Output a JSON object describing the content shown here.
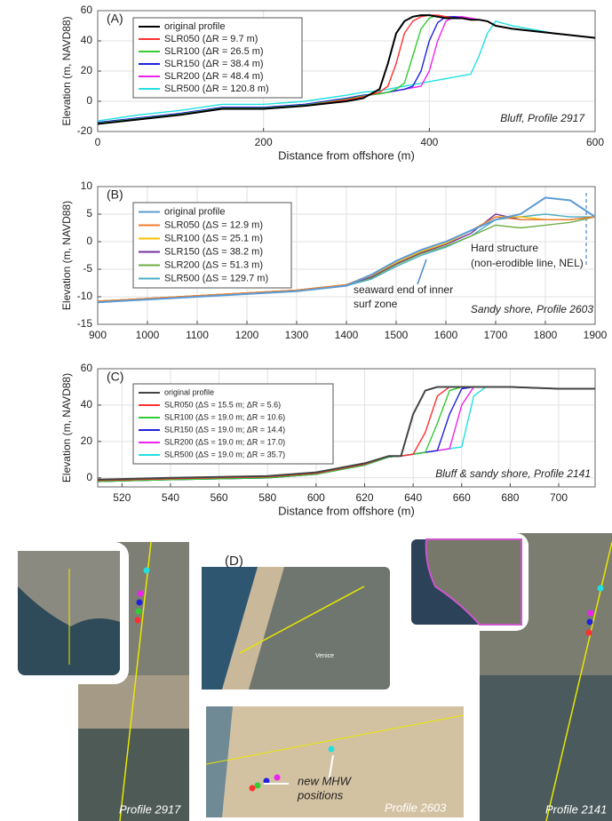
{
  "chart_data": [
    {
      "type": "line",
      "panel_label": "(A)",
      "corner_note": "Bluff, Profile 2917",
      "xlabel": "Distance from offshore (m)",
      "ylabel": "Elevation (m, NAVD88)",
      "xlim": [
        0,
        600
      ],
      "ylim": [
        -20,
        60
      ],
      "xticks": [
        0,
        200,
        400,
        600
      ],
      "yticks": [
        -20,
        0,
        20,
        40,
        60
      ],
      "grid": true,
      "x": [
        0,
        50,
        100,
        150,
        200,
        250,
        300,
        320,
        340,
        350,
        360,
        370,
        380,
        390,
        400,
        410,
        420,
        430,
        440,
        450,
        460,
        470,
        480,
        500,
        550,
        600
      ],
      "series": [
        {
          "name": "original profile",
          "color": "#000000",
          "values": [
            -15,
            -12,
            -9,
            -5,
            -5,
            -3,
            0,
            2,
            8,
            25,
            45,
            53,
            56,
            57,
            57,
            56,
            55,
            55,
            55,
            54,
            54,
            53,
            50,
            48,
            45,
            42
          ]
        },
        {
          "name": "SLR050 (ΔR = 9.7 m)",
          "color": "#ff3030",
          "values": [
            -15,
            -12,
            -9,
            -5,
            -5,
            -3,
            1,
            3,
            6,
            10,
            25,
            45,
            53,
            56,
            57,
            57,
            56,
            55,
            55,
            54,
            54,
            53,
            50,
            48,
            45,
            42
          ]
        },
        {
          "name": "SLR100 (ΔR = 26.5 m)",
          "color": "#33cc33",
          "values": [
            -14.5,
            -11.5,
            -8.5,
            -4.5,
            -4.5,
            -2.5,
            1.5,
            3.5,
            5,
            6,
            8,
            12,
            30,
            48,
            55,
            57,
            56,
            55,
            55,
            54,
            54,
            53,
            50,
            48,
            45,
            42
          ]
        },
        {
          "name": "SLR150 (ΔR = 38.4 m)",
          "color": "#2020dd",
          "values": [
            -14,
            -11,
            -8,
            -4,
            -4,
            -2,
            2,
            4,
            5,
            6,
            7,
            8,
            10,
            20,
            40,
            52,
            56,
            56,
            55,
            54,
            54,
            53,
            50,
            48,
            45,
            42
          ]
        },
        {
          "name": "SLR200 (ΔR = 48.4 m)",
          "color": "#ee22ee",
          "values": [
            -14,
            -11,
            -8,
            -4,
            -4,
            -2,
            2,
            4,
            5,
            6,
            7,
            8,
            9,
            10,
            20,
            40,
            53,
            56,
            56,
            55,
            54,
            53,
            50,
            48,
            45,
            42
          ]
        },
        {
          "name": "SLR500 (ΔR = 120.8 m)",
          "color": "#22e0e0",
          "values": [
            -13,
            -9,
            -6,
            -2,
            -2,
            0,
            4,
            6,
            7,
            8,
            9,
            10,
            11,
            12,
            13,
            14,
            15,
            16,
            17,
            18,
            30,
            45,
            53,
            50,
            45,
            42
          ]
        }
      ]
    },
    {
      "type": "line",
      "panel_label": "(B)",
      "corner_note": "Sandy shore, Profile 2603",
      "notes": [
        "Hard structure",
        "(non-erodible line, NEL)",
        "seaward end of inner",
        "surf zone"
      ],
      "ylabel": "Elevation (m, NAVD88)",
      "xlim": [
        900,
        1900
      ],
      "ylim": [
        -15,
        10
      ],
      "xticks": [
        900,
        1000,
        1100,
        1200,
        1300,
        1400,
        1500,
        1600,
        1700,
        1800,
        1900
      ],
      "yticks": [
        -15,
        -10,
        -5,
        0,
        5,
        10
      ],
      "grid": true,
      "x": [
        900,
        1000,
        1100,
        1200,
        1300,
        1400,
        1450,
        1500,
        1550,
        1600,
        1650,
        1700,
        1750,
        1800,
        1850,
        1900
      ],
      "series": [
        {
          "name": "original profile",
          "color": "#5b9bd5",
          "values": [
            -11,
            -10.5,
            -10,
            -9.5,
            -9,
            -8,
            -6,
            -3.5,
            -1.5,
            0,
            2,
            4,
            5,
            8,
            7.5,
            4.5
          ]
        },
        {
          "name": "SLR050 (ΔS = 12.9 m)",
          "color": "#ed7d31",
          "values": [
            -10.8,
            -10.3,
            -9.8,
            -9.3,
            -8.8,
            -7.8,
            -6,
            -3.5,
            -1.5,
            0,
            2,
            4.5,
            4,
            4,
            4,
            4.5
          ]
        },
        {
          "name": "SLR100 (ΔS = 25.1 m)",
          "color": "#ffc000",
          "values": [
            -10.8,
            -10.3,
            -9.8,
            -9.3,
            -8.8,
            -7.8,
            -6.2,
            -3.8,
            -1.8,
            -0.3,
            2,
            4.5,
            4.5,
            4,
            4,
            4.5
          ]
        },
        {
          "name": "SLR150 (ΔS = 38.2 m)",
          "color": "#7030a0",
          "values": [
            -10.8,
            -10.3,
            -9.8,
            -9.3,
            -8.8,
            -7.8,
            -6.4,
            -4,
            -2,
            -0.5,
            1.5,
            5,
            4,
            4,
            4,
            4.5
          ]
        },
        {
          "name": "SLR200 (ΔS = 51.3 m)",
          "color": "#70ad47",
          "values": [
            -10.8,
            -10.3,
            -9.8,
            -9.3,
            -8.8,
            -7.8,
            -6.6,
            -4.2,
            -2.2,
            -0.8,
            1,
            3,
            2.5,
            3,
            3.5,
            4.5
          ]
        },
        {
          "name": "SLR500 (ΔS = 129.7 m)",
          "color": "#4bacc6",
          "values": [
            -10.9,
            -10.4,
            -9.9,
            -9.4,
            -8.9,
            -8,
            -6.8,
            -4.5,
            -2.5,
            -1,
            1,
            4,
            4.5,
            5,
            4.5,
            4.5
          ]
        }
      ]
    },
    {
      "type": "line",
      "panel_label": "(C)",
      "corner_note": "Bluff & sandy shore, Profile 2141",
      "xlabel": "Distance from offshore (m)",
      "ylabel": "Elevation (m, NAVD88)",
      "xlim": [
        510,
        715
      ],
      "ylim": [
        -5,
        60
      ],
      "xticks": [
        520,
        540,
        560,
        580,
        600,
        620,
        640,
        660,
        680,
        700
      ],
      "yticks": [
        0,
        20,
        40,
        60
      ],
      "grid": true,
      "x": [
        510,
        540,
        580,
        600,
        620,
        630,
        635,
        640,
        645,
        650,
        655,
        660,
        665,
        670,
        675,
        680,
        700,
        715
      ],
      "series": [
        {
          "name": "original profile",
          "color": "#444444",
          "values": [
            -1,
            0,
            1,
            3,
            8,
            12,
            12,
            35,
            48,
            50,
            50,
            50,
            50,
            50,
            50,
            50,
            49,
            49
          ]
        },
        {
          "name": "SLR050 (ΔS = 15.5 m; ΔR = 5.6)",
          "color": "#ff3030",
          "values": [
            -1.5,
            -0.5,
            0.5,
            2.5,
            7.5,
            12,
            12,
            13,
            25,
            45,
            50,
            50,
            50,
            50,
            50,
            50,
            49,
            49
          ]
        },
        {
          "name": "SLR100 (ΔS = 19.0 m; ΔR = 10.6)",
          "color": "#33cc33",
          "values": [
            -2,
            -1,
            0,
            2,
            7,
            11.5,
            12,
            13,
            14,
            30,
            48,
            50,
            50,
            50,
            50,
            50,
            49,
            49
          ]
        },
        {
          "name": "SLR150 (ΔS = 19.0 m; ΔR = 14.4)",
          "color": "#2020dd",
          "values": [
            -2,
            -1,
            0,
            2,
            7,
            11.5,
            12,
            13,
            14,
            15,
            35,
            49,
            50,
            50,
            50,
            50,
            49,
            49
          ]
        },
        {
          "name": "SLR200 (ΔS = 19.0 m; ΔR = 17.0)",
          "color": "#ee22ee",
          "values": [
            -2,
            -1,
            0,
            2,
            7,
            11.5,
            12,
            13,
            14,
            15,
            16,
            40,
            50,
            50,
            50,
            50,
            49,
            49
          ]
        },
        {
          "name": "SLR500 (ΔS = 19.0 m; ΔR = 35.7)",
          "color": "#22e0e0",
          "values": [
            -2,
            -1,
            0,
            2,
            7,
            11.5,
            12,
            13,
            14,
            15,
            16,
            17,
            45,
            50,
            50,
            50,
            49,
            49
          ]
        }
      ]
    }
  ],
  "figure_panel": {
    "label": "(D)",
    "place": "Venice",
    "annotation": [
      "new MHW",
      "positions"
    ],
    "captions": [
      "Profile 2917",
      "Profile 2603",
      "Profile 2141"
    ]
  }
}
